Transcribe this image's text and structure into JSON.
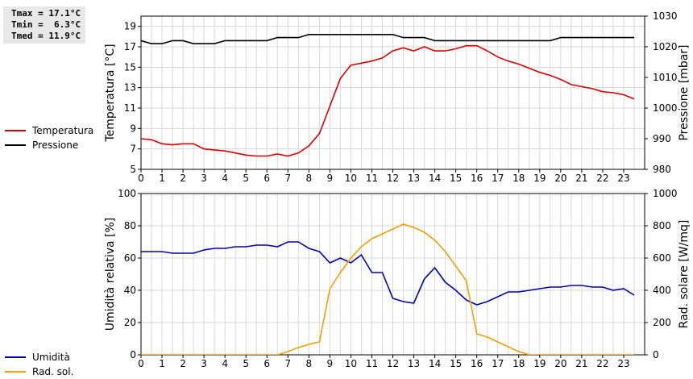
{
  "stats": {
    "tmax": "Tmax = 17.1°C",
    "tmin": "Tmin =  6.3°C",
    "tmed": "Tmed = 11.9°C"
  },
  "legend_top": [
    {
      "label": "Temperatura",
      "color": "#dd0000"
    },
    {
      "label": "Pressione",
      "color": "#000000"
    }
  ],
  "legend_bottom": [
    {
      "label": "Umidità",
      "color": "#0000bb"
    },
    {
      "label": "Rad. sol.",
      "color": "#f0a000"
    }
  ],
  "chart_data": [
    {
      "type": "line",
      "ylabel": "Temperatura [°C]",
      "ylabel_right": "Pressione [mbar]",
      "xlim": [
        0,
        24
      ],
      "ylim": [
        5,
        20
      ],
      "ylim_right": [
        980,
        1030
      ],
      "x_ticks": [
        "0",
        "1",
        "2",
        "3",
        "4",
        "5",
        "6",
        "7",
        "8",
        "9",
        "10",
        "11",
        "12",
        "13",
        "14",
        "15",
        "16",
        "17",
        "18",
        "19",
        "20",
        "21",
        "22",
        "23"
      ],
      "y_ticks": [
        "5",
        "7",
        "9",
        "11",
        "13",
        "15",
        "17",
        "19"
      ],
      "y_ticks_right": [
        "980",
        "990",
        "1000",
        "1010",
        "1020",
        "1030"
      ],
      "grid": true,
      "series": [
        {
          "name": "Temperatura",
          "axis": "left",
          "color": "#dd0000",
          "x": [
            0,
            0.5,
            1,
            1.5,
            2,
            2.5,
            3,
            3.5,
            4,
            4.5,
            5,
            5.5,
            6,
            6.5,
            7,
            7.5,
            8,
            8.5,
            9,
            9.5,
            10,
            10.5,
            11,
            11.5,
            12,
            12.5,
            13,
            13.5,
            14,
            14.5,
            15,
            15.5,
            16,
            16.5,
            17,
            17.5,
            18,
            18.5,
            19,
            19.5,
            20,
            20.5,
            21,
            21.5,
            22,
            22.5,
            23,
            23.5
          ],
          "y": [
            8.0,
            7.9,
            7.5,
            7.4,
            7.5,
            7.5,
            7.0,
            6.9,
            6.8,
            6.6,
            6.4,
            6.3,
            6.3,
            6.5,
            6.3,
            6.6,
            7.3,
            8.5,
            11.2,
            13.9,
            15.2,
            15.4,
            15.6,
            15.9,
            16.6,
            16.9,
            16.6,
            17.0,
            16.6,
            16.6,
            16.8,
            17.1,
            17.1,
            16.6,
            16.0,
            15.6,
            15.3,
            14.9,
            14.5,
            14.2,
            13.8,
            13.3,
            13.1,
            12.9,
            12.6,
            12.5,
            12.3,
            11.9
          ]
        },
        {
          "name": "Pressione",
          "axis": "right",
          "color": "#000000",
          "x": [
            0,
            0.5,
            1,
            1.5,
            2,
            2.5,
            3,
            3.5,
            4,
            4.5,
            5,
            5.5,
            6,
            6.5,
            7,
            7.5,
            8,
            8.5,
            9,
            9.5,
            10,
            10.5,
            11,
            11.5,
            12,
            12.5,
            13,
            13.5,
            14,
            14.5,
            15,
            15.5,
            16,
            16.5,
            17,
            17.5,
            18,
            18.5,
            19,
            19.5,
            20,
            20.5,
            21,
            21.5,
            22,
            22.5,
            23,
            23.5
          ],
          "y": [
            1022,
            1021,
            1021,
            1022,
            1022,
            1021,
            1021,
            1021,
            1022,
            1022,
            1022,
            1022,
            1022,
            1023,
            1023,
            1023,
            1024,
            1024,
            1024,
            1024,
            1024,
            1024,
            1024,
            1024,
            1024,
            1023,
            1023,
            1023,
            1022,
            1022,
            1022,
            1022,
            1022,
            1022,
            1022,
            1022,
            1022,
            1022,
            1022,
            1022,
            1023,
            1023,
            1023,
            1023,
            1023,
            1023,
            1023,
            1023
          ]
        }
      ]
    },
    {
      "type": "line",
      "ylabel": "Umidità relativa [%]",
      "ylabel_right": "Rad. solare [W/mq]",
      "xlim": [
        0,
        24
      ],
      "ylim": [
        0,
        100
      ],
      "ylim_right": [
        0,
        1000
      ],
      "x_ticks": [
        "0",
        "1",
        "2",
        "3",
        "4",
        "5",
        "6",
        "7",
        "8",
        "9",
        "10",
        "11",
        "12",
        "13",
        "14",
        "15",
        "16",
        "17",
        "18",
        "19",
        "20",
        "21",
        "22",
        "23"
      ],
      "y_ticks": [
        "0",
        "20",
        "40",
        "60",
        "80",
        "100"
      ],
      "y_ticks_right": [
        "0",
        "200",
        "400",
        "600",
        "800",
        "1000"
      ],
      "grid": true,
      "series": [
        {
          "name": "Umidità",
          "axis": "left",
          "color": "#0000bb",
          "x": [
            0,
            0.5,
            1,
            1.5,
            2,
            2.5,
            3,
            3.5,
            4,
            4.5,
            5,
            5.5,
            6,
            6.5,
            7,
            7.5,
            8,
            8.5,
            9,
            9.5,
            10,
            10.5,
            11,
            11.5,
            12,
            12.5,
            13,
            13.5,
            14,
            14.5,
            15,
            15.5,
            16,
            16.5,
            17,
            17.5,
            18,
            18.5,
            19,
            19.5,
            20,
            20.5,
            21,
            21.5,
            22,
            22.5,
            23,
            23.5
          ],
          "y": [
            64,
            64,
            64,
            63,
            63,
            63,
            65,
            66,
            66,
            67,
            67,
            68,
            68,
            67,
            70,
            70,
            66,
            64,
            57,
            60,
            57,
            62,
            51,
            51,
            35,
            33,
            32,
            47,
            54,
            45,
            40,
            34,
            31,
            33,
            36,
            39,
            39,
            40,
            41,
            42,
            42,
            43,
            43,
            42,
            42,
            40,
            41,
            37
          ]
        },
        {
          "name": "Rad. sol.",
          "axis": "right",
          "color": "#f0a000",
          "x": [
            0,
            0.5,
            1,
            1.5,
            2,
            2.5,
            3,
            3.5,
            4,
            4.5,
            5,
            5.5,
            6,
            6.5,
            7,
            7.5,
            8,
            8.5,
            9,
            9.5,
            10,
            10.5,
            11,
            11.5,
            12,
            12.5,
            13,
            13.5,
            14,
            14.5,
            15,
            15.5,
            16,
            16.5,
            17,
            17.5,
            18,
            18.5,
            19,
            19.5,
            20,
            20.5,
            21,
            21.5,
            22,
            22.5,
            23,
            23.5
          ],
          "y": [
            0,
            0,
            0,
            0,
            0,
            0,
            0,
            0,
            0,
            0,
            0,
            0,
            0,
            0,
            20,
            45,
            65,
            80,
            410,
            510,
            600,
            670,
            720,
            750,
            780,
            810,
            790,
            760,
            710,
            640,
            550,
            460,
            130,
            110,
            80,
            50,
            20,
            0,
            0,
            0,
            0,
            0,
            0,
            0,
            0,
            0,
            0,
            0
          ]
        }
      ]
    }
  ]
}
